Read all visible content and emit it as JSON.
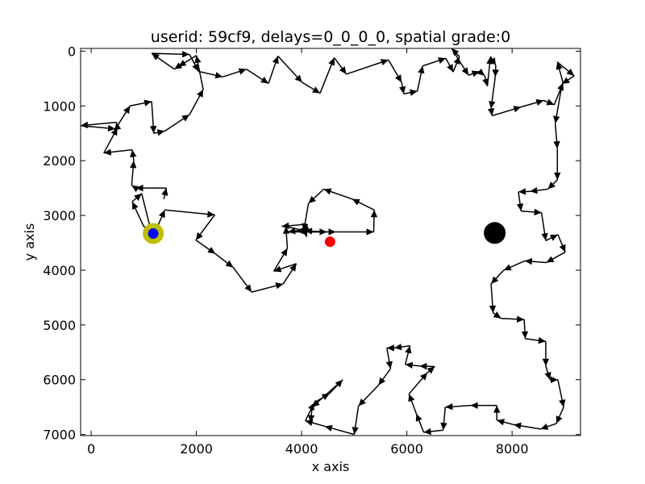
{
  "chart_data": {
    "type": "line",
    "title": "userid: 59cf9, delays=0_0_0_0, spatial grade:0",
    "xlabel": "x axis",
    "ylabel": "y axis",
    "xlim": [
      -200,
      9300
    ],
    "ylim": [
      7020,
      -50
    ],
    "y_inverted": true,
    "x_ticks": [
      0,
      2000,
      4000,
      6000,
      8000
    ],
    "y_ticks": [
      0,
      1000,
      2000,
      3000,
      4000,
      5000,
      6000,
      7000
    ],
    "grid": false,
    "legend": "none",
    "series": [
      {
        "points": [
          [
            1180,
            3330
          ],
          [
            1000,
            3200
          ],
          [
            780,
            2750
          ],
          [
            960,
            2600
          ],
          [
            1170,
            3400
          ],
          [
            1400,
            2900
          ],
          [
            2350,
            2990
          ],
          [
            1990,
            3450
          ],
          [
            2360,
            3700
          ],
          [
            2700,
            3950
          ],
          [
            3050,
            4400
          ],
          [
            3650,
            4250
          ],
          [
            3900,
            3880
          ],
          [
            3470,
            4020
          ],
          [
            3730,
            3600
          ],
          [
            3700,
            3200
          ],
          [
            4140,
            3300
          ],
          [
            4650,
            3300
          ],
          [
            5370,
            3300
          ],
          [
            5380,
            2900
          ],
          [
            4960,
            2700
          ],
          [
            4420,
            2520
          ],
          [
            4130,
            2780
          ],
          [
            4040,
            3280
          ],
          [
            3900,
            3280
          ],
          [
            3740,
            3300
          ],
          [
            4480,
            3300
          ],
          [
            4060,
            3280
          ],
          [
            4090,
            3390
          ],
          [
            4100,
            3160
          ],
          [
            3620,
            3200
          ]
        ],
        "color": "#000000"
      },
      {
        "points": [
          [
            1380,
            2700
          ],
          [
            1430,
            2500
          ],
          [
            850,
            2500
          ],
          [
            770,
            2450
          ],
          [
            810,
            2000
          ],
          [
            780,
            1800
          ],
          [
            240,
            1860
          ],
          [
            500,
            1400
          ],
          [
            480,
            1300
          ],
          [
            -200,
            1360
          ],
          [
            460,
            1420
          ],
          [
            740,
            1000
          ],
          [
            1150,
            920
          ],
          [
            1190,
            1500
          ],
          [
            1400,
            1460
          ],
          [
            1870,
            1160
          ],
          [
            2130,
            700
          ],
          [
            2000,
            80
          ],
          [
            1660,
            280
          ],
          [
            1580,
            330
          ],
          [
            1150,
            40
          ],
          [
            1870,
            60
          ],
          [
            2040,
            370
          ],
          [
            2500,
            470
          ],
          [
            2950,
            330
          ],
          [
            3370,
            590
          ],
          [
            3550,
            90
          ],
          [
            4010,
            570
          ],
          [
            4350,
            770
          ],
          [
            4620,
            120
          ],
          [
            4850,
            420
          ],
          [
            5650,
            160
          ],
          [
            5900,
            570
          ],
          [
            5940,
            780
          ],
          [
            6200,
            730
          ],
          [
            6300,
            270
          ],
          [
            6740,
            130
          ],
          [
            6880,
            380
          ],
          [
            7000,
            100
          ],
          [
            6850,
            -50
          ],
          [
            7170,
            440
          ],
          [
            7380,
            370
          ],
          [
            7480,
            450
          ],
          [
            7530,
            640
          ],
          [
            7590,
            100
          ],
          [
            7690,
            260
          ],
          [
            7680,
            470
          ],
          [
            7600,
            1050
          ],
          [
            7620,
            1180
          ],
          [
            8170,
            1020
          ],
          [
            8600,
            900
          ],
          [
            8800,
            980
          ],
          [
            8970,
            580
          ],
          [
            8860,
            200
          ],
          [
            9180,
            450
          ],
          [
            8950,
            600
          ],
          [
            8820,
            1320
          ],
          [
            8860,
            1780
          ],
          [
            8860,
            2350
          ],
          [
            8680,
            2520
          ],
          [
            8340,
            2560
          ],
          [
            8120,
            2570
          ],
          [
            8170,
            2920
          ],
          [
            8560,
            2950
          ],
          [
            8640,
            3460
          ],
          [
            8870,
            3350
          ],
          [
            9010,
            3670
          ],
          [
            8650,
            3860
          ],
          [
            8240,
            3830
          ],
          [
            7840,
            4000
          ],
          [
            7600,
            4250
          ],
          [
            7640,
            4780
          ],
          [
            7790,
            4880
          ],
          [
            8230,
            4900
          ],
          [
            8250,
            5250
          ],
          [
            8640,
            5300
          ],
          [
            8640,
            5750
          ],
          [
            8720,
            6000
          ],
          [
            8870,
            6000
          ],
          [
            8980,
            6500
          ],
          [
            8840,
            6800
          ],
          [
            8540,
            6900
          ],
          [
            8030,
            6820
          ],
          [
            7710,
            6740
          ],
          [
            7710,
            6470
          ],
          [
            7210,
            6470
          ],
          [
            6730,
            6500
          ],
          [
            6690,
            6920
          ],
          [
            6320,
            6960
          ],
          [
            6180,
            6620
          ],
          [
            6040,
            6260
          ],
          [
            6390,
            5870
          ],
          [
            6530,
            5760
          ],
          [
            6240,
            5750
          ],
          [
            5970,
            5720
          ],
          [
            6060,
            5380
          ],
          [
            5760,
            5420
          ],
          [
            5620,
            5420
          ],
          [
            5690,
            5800
          ],
          [
            5460,
            6100
          ],
          [
            5080,
            6480
          ],
          [
            5000,
            7000
          ],
          [
            4440,
            6850
          ],
          [
            4070,
            6750
          ],
          [
            4240,
            6420
          ],
          [
            4530,
            6250
          ],
          [
            4780,
            6000
          ],
          [
            4200,
            6500
          ],
          [
            4170,
            6780
          ]
        ],
        "color": "#000000"
      }
    ],
    "markers": [
      {
        "x": 1180,
        "y": 3330,
        "color": "#bfbf00",
        "r": 13
      },
      {
        "x": 1180,
        "y": 3330,
        "color": "#0000ff",
        "r": 6.5
      },
      {
        "x": 4540,
        "y": 3480,
        "color": "#ff0000",
        "r": 6.5
      },
      {
        "x": 7670,
        "y": 3320,
        "color": "#000000",
        "r": 13.5
      }
    ]
  }
}
